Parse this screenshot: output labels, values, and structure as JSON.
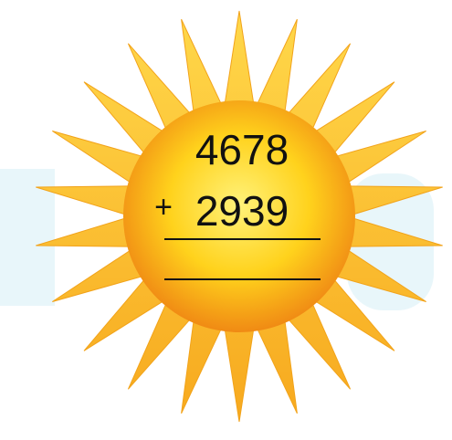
{
  "problem": {
    "addend1": "4678",
    "operator": "+",
    "addend2": "2939"
  }
}
